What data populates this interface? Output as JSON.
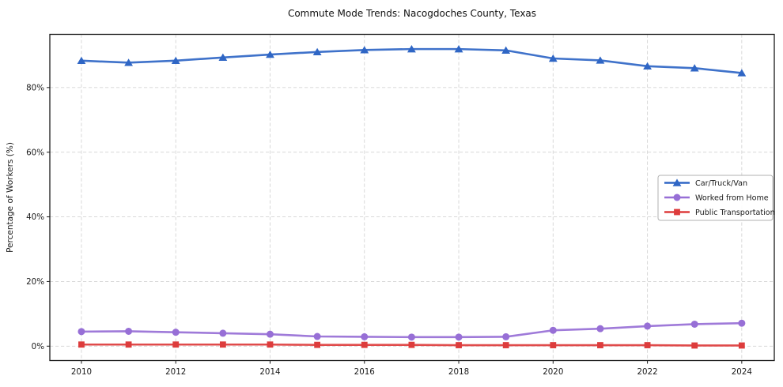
{
  "title": "Commute Mode Trends: Nacogdoches County, Texas",
  "chart_data": {
    "type": "line",
    "title": "Commute Mode Trends: Nacogdoches County, Texas",
    "xlabel": "",
    "ylabel": "Percentage of Workers (%)",
    "x": [
      2010,
      2011,
      2012,
      2013,
      2014,
      2015,
      2016,
      2017,
      2018,
      2019,
      2020,
      2021,
      2022,
      2023,
      2024
    ],
    "x_ticks": [
      2010,
      2012,
      2014,
      2016,
      2018,
      2020,
      2022,
      2024
    ],
    "x_tick_labels": [
      "2010",
      "2012",
      "2014",
      "2016",
      "2018",
      "2020",
      "2022",
      "2024"
    ],
    "y_ticks": [
      0,
      20,
      40,
      60,
      80
    ],
    "y_tick_labels": [
      "0%",
      "20%",
      "40%",
      "60%",
      "80%"
    ],
    "xlim": [
      2009.33,
      2024.69
    ],
    "ylim": [
      -4.45,
      96.45
    ],
    "grid": true,
    "legend": {
      "position": "center-right",
      "entries": [
        "Car/Truck/Van",
        "Worked from Home",
        "Public Transportation"
      ]
    },
    "series": [
      {
        "name": "Car/Truck/Van",
        "color": "#2f66c5",
        "marker": "triangle-up",
        "values": [
          88.3,
          87.7,
          88.3,
          89.3,
          90.2,
          91.0,
          91.6,
          91.9,
          91.9,
          91.5,
          89.0,
          88.4,
          86.6,
          86.0,
          84.5
        ]
      },
      {
        "name": "Worked from Home",
        "color": "#976fd6",
        "marker": "circle",
        "values": [
          4.5,
          4.6,
          4.3,
          4.0,
          3.7,
          3.0,
          2.9,
          2.8,
          2.8,
          2.9,
          4.9,
          5.4,
          6.2,
          6.8,
          7.1
        ]
      },
      {
        "name": "Public Transportation",
        "color": "#dd3c3c",
        "marker": "square",
        "values": [
          0.5,
          0.5,
          0.5,
          0.5,
          0.5,
          0.4,
          0.4,
          0.4,
          0.3,
          0.3,
          0.3,
          0.3,
          0.3,
          0.2,
          0.2
        ]
      }
    ],
    "colors": {
      "background": "#ffffff",
      "grid": "#cccccc",
      "axis": "#1a1a1a",
      "text": "#1a1a1a",
      "legend_border": "#b0b0b0"
    }
  }
}
